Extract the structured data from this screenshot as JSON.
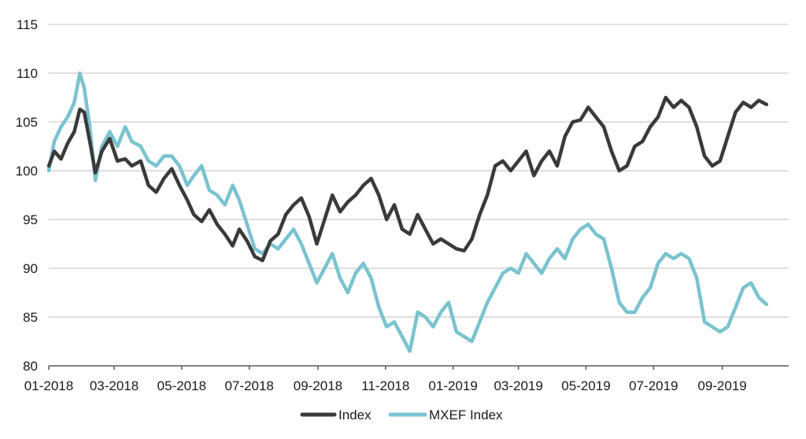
{
  "chart_data": {
    "type": "line",
    "title": "",
    "xlabel": "",
    "ylabel": "",
    "ylim": [
      80,
      115
    ],
    "xlim": [
      "2018-01-01",
      "2019-10-31"
    ],
    "y_ticks": [
      80,
      85,
      90,
      95,
      100,
      105,
      110,
      115
    ],
    "x_ticks": [
      {
        "label": "01-2018",
        "date": "2018-01-01"
      },
      {
        "label": "03-2018",
        "date": "2018-03-01"
      },
      {
        "label": "05-2018",
        "date": "2018-05-01"
      },
      {
        "label": "07-2018",
        "date": "2018-07-01"
      },
      {
        "label": "09-2018",
        "date": "2018-09-01"
      },
      {
        "label": "11-2018",
        "date": "2018-11-01"
      },
      {
        "label": "01-2019",
        "date": "2019-01-01"
      },
      {
        "label": "03-2019",
        "date": "2019-03-01"
      },
      {
        "label": "05-2019",
        "date": "2019-05-01"
      },
      {
        "label": "07-2019",
        "date": "2019-07-01"
      },
      {
        "label": "09-2019",
        "date": "2019-09-01"
      }
    ],
    "grid": "horizontal",
    "legend_position": "bottom-center",
    "series": [
      {
        "name": "Index",
        "color": "#3a3a3a",
        "points": [
          [
            "2018-01-01",
            100.5
          ],
          [
            "2018-01-06",
            102.0
          ],
          [
            "2018-01-12",
            101.2
          ],
          [
            "2018-01-18",
            102.8
          ],
          [
            "2018-01-24",
            104.0
          ],
          [
            "2018-01-29",
            106.3
          ],
          [
            "2018-02-02",
            106.0
          ],
          [
            "2018-02-07",
            103.0
          ],
          [
            "2018-02-12",
            99.8
          ],
          [
            "2018-02-18",
            102.0
          ],
          [
            "2018-02-25",
            103.3
          ],
          [
            "2018-03-04",
            101.0
          ],
          [
            "2018-03-11",
            101.2
          ],
          [
            "2018-03-17",
            100.5
          ],
          [
            "2018-03-25",
            101.0
          ],
          [
            "2018-04-01",
            98.5
          ],
          [
            "2018-04-08",
            97.8
          ],
          [
            "2018-04-15",
            99.2
          ],
          [
            "2018-04-22",
            100.2
          ],
          [
            "2018-04-29",
            98.5
          ],
          [
            "2018-05-06",
            97.0
          ],
          [
            "2018-05-12",
            95.5
          ],
          [
            "2018-05-19",
            94.8
          ],
          [
            "2018-05-26",
            96.0
          ],
          [
            "2018-06-02",
            94.5
          ],
          [
            "2018-06-09",
            93.5
          ],
          [
            "2018-06-16",
            92.3
          ],
          [
            "2018-06-22",
            94.0
          ],
          [
            "2018-06-29",
            92.8
          ],
          [
            "2018-07-06",
            91.2
          ],
          [
            "2018-07-13",
            90.8
          ],
          [
            "2018-07-20",
            92.8
          ],
          [
            "2018-07-27",
            93.5
          ],
          [
            "2018-08-03",
            95.5
          ],
          [
            "2018-08-10",
            96.5
          ],
          [
            "2018-08-17",
            97.2
          ],
          [
            "2018-08-24",
            95.3
          ],
          [
            "2018-08-31",
            92.5
          ],
          [
            "2018-09-07",
            95.0
          ],
          [
            "2018-09-14",
            97.5
          ],
          [
            "2018-09-21",
            95.8
          ],
          [
            "2018-09-28",
            96.8
          ],
          [
            "2018-10-05",
            97.5
          ],
          [
            "2018-10-12",
            98.5
          ],
          [
            "2018-10-19",
            99.2
          ],
          [
            "2018-10-26",
            97.5
          ],
          [
            "2018-11-02",
            95.0
          ],
          [
            "2018-11-09",
            96.5
          ],
          [
            "2018-11-16",
            94.0
          ],
          [
            "2018-11-23",
            93.5
          ],
          [
            "2018-11-30",
            95.5
          ],
          [
            "2018-12-07",
            94.0
          ],
          [
            "2018-12-14",
            92.5
          ],
          [
            "2018-12-21",
            93.0
          ],
          [
            "2018-12-28",
            92.5
          ],
          [
            "2019-01-04",
            92.0
          ],
          [
            "2019-01-11",
            91.8
          ],
          [
            "2019-01-18",
            93.0
          ],
          [
            "2019-01-25",
            95.5
          ],
          [
            "2019-02-01",
            97.5
          ],
          [
            "2019-02-08",
            100.5
          ],
          [
            "2019-02-15",
            101.0
          ],
          [
            "2019-02-22",
            100.0
          ],
          [
            "2019-03-01",
            101.0
          ],
          [
            "2019-03-08",
            102.0
          ],
          [
            "2019-03-15",
            99.5
          ],
          [
            "2019-03-22",
            101.0
          ],
          [
            "2019-03-29",
            102.0
          ],
          [
            "2019-04-05",
            100.5
          ],
          [
            "2019-04-12",
            103.5
          ],
          [
            "2019-04-19",
            105.0
          ],
          [
            "2019-04-26",
            105.2
          ],
          [
            "2019-05-03",
            106.5
          ],
          [
            "2019-05-10",
            105.5
          ],
          [
            "2019-05-17",
            104.5
          ],
          [
            "2019-05-24",
            102.0
          ],
          [
            "2019-05-31",
            100.0
          ],
          [
            "2019-06-07",
            100.5
          ],
          [
            "2019-06-14",
            102.5
          ],
          [
            "2019-06-21",
            103.0
          ],
          [
            "2019-06-28",
            104.5
          ],
          [
            "2019-07-05",
            105.5
          ],
          [
            "2019-07-12",
            107.5
          ],
          [
            "2019-07-19",
            106.5
          ],
          [
            "2019-07-26",
            107.2
          ],
          [
            "2019-08-02",
            106.5
          ],
          [
            "2019-08-09",
            104.5
          ],
          [
            "2019-08-16",
            101.5
          ],
          [
            "2019-08-23",
            100.5
          ],
          [
            "2019-08-30",
            101.0
          ],
          [
            "2019-09-06",
            103.5
          ],
          [
            "2019-09-13",
            106.0
          ],
          [
            "2019-09-20",
            107.0
          ],
          [
            "2019-09-27",
            106.5
          ],
          [
            "2019-10-04",
            107.2
          ],
          [
            "2019-10-11",
            106.8
          ]
        ]
      },
      {
        "name": "MXEF Index",
        "color": "#7ac3d0",
        "points": [
          [
            "2018-01-01",
            100.0
          ],
          [
            "2018-01-06",
            103.0
          ],
          [
            "2018-01-12",
            104.5
          ],
          [
            "2018-01-18",
            105.5
          ],
          [
            "2018-01-24",
            107.0
          ],
          [
            "2018-01-29",
            110.0
          ],
          [
            "2018-02-02",
            108.5
          ],
          [
            "2018-02-07",
            104.5
          ],
          [
            "2018-02-12",
            99.0
          ],
          [
            "2018-02-18",
            102.5
          ],
          [
            "2018-02-25",
            104.0
          ],
          [
            "2018-03-04",
            102.5
          ],
          [
            "2018-03-11",
            104.5
          ],
          [
            "2018-03-17",
            103.0
          ],
          [
            "2018-03-25",
            102.5
          ],
          [
            "2018-04-01",
            101.0
          ],
          [
            "2018-04-08",
            100.5
          ],
          [
            "2018-04-15",
            101.5
          ],
          [
            "2018-04-22",
            101.5
          ],
          [
            "2018-04-29",
            100.5
          ],
          [
            "2018-05-06",
            98.5
          ],
          [
            "2018-05-12",
            99.5
          ],
          [
            "2018-05-19",
            100.5
          ],
          [
            "2018-05-26",
            98.0
          ],
          [
            "2018-06-02",
            97.5
          ],
          [
            "2018-06-09",
            96.5
          ],
          [
            "2018-06-16",
            98.5
          ],
          [
            "2018-06-22",
            97.0
          ],
          [
            "2018-06-29",
            94.5
          ],
          [
            "2018-07-06",
            92.0
          ],
          [
            "2018-07-13",
            91.5
          ],
          [
            "2018-07-20",
            92.5
          ],
          [
            "2018-07-27",
            92.0
          ],
          [
            "2018-08-03",
            93.0
          ],
          [
            "2018-08-10",
            94.0
          ],
          [
            "2018-08-17",
            92.5
          ],
          [
            "2018-08-24",
            90.5
          ],
          [
            "2018-08-31",
            88.5
          ],
          [
            "2018-09-07",
            90.0
          ],
          [
            "2018-09-14",
            91.5
          ],
          [
            "2018-09-21",
            89.0
          ],
          [
            "2018-09-28",
            87.5
          ],
          [
            "2018-10-05",
            89.5
          ],
          [
            "2018-10-12",
            90.5
          ],
          [
            "2018-10-19",
            89.0
          ],
          [
            "2018-10-26",
            86.0
          ],
          [
            "2018-11-02",
            84.0
          ],
          [
            "2018-11-09",
            84.5
          ],
          [
            "2018-11-16",
            83.0
          ],
          [
            "2018-11-23",
            81.5
          ],
          [
            "2018-11-30",
            85.5
          ],
          [
            "2018-12-07",
            85.0
          ],
          [
            "2018-12-14",
            84.0
          ],
          [
            "2018-12-21",
            85.5
          ],
          [
            "2018-12-28",
            86.5
          ],
          [
            "2019-01-04",
            83.5
          ],
          [
            "2019-01-11",
            83.0
          ],
          [
            "2019-01-18",
            82.5
          ],
          [
            "2019-01-25",
            84.5
          ],
          [
            "2019-02-01",
            86.5
          ],
          [
            "2019-02-08",
            88.0
          ],
          [
            "2019-02-15",
            89.5
          ],
          [
            "2019-02-22",
            90.0
          ],
          [
            "2019-03-01",
            89.5
          ],
          [
            "2019-03-08",
            91.5
          ],
          [
            "2019-03-15",
            90.5
          ],
          [
            "2019-03-22",
            89.5
          ],
          [
            "2019-03-29",
            91.0
          ],
          [
            "2019-04-05",
            92.0
          ],
          [
            "2019-04-12",
            91.0
          ],
          [
            "2019-04-19",
            93.0
          ],
          [
            "2019-04-26",
            94.0
          ],
          [
            "2019-05-03",
            94.5
          ],
          [
            "2019-05-10",
            93.5
          ],
          [
            "2019-05-17",
            93.0
          ],
          [
            "2019-05-24",
            90.0
          ],
          [
            "2019-05-31",
            86.5
          ],
          [
            "2019-06-07",
            85.5
          ],
          [
            "2019-06-14",
            85.5
          ],
          [
            "2019-06-21",
            87.0
          ],
          [
            "2019-06-28",
            88.0
          ],
          [
            "2019-07-05",
            90.5
          ],
          [
            "2019-07-12",
            91.5
          ],
          [
            "2019-07-19",
            91.0
          ],
          [
            "2019-07-26",
            91.5
          ],
          [
            "2019-08-02",
            91.0
          ],
          [
            "2019-08-09",
            89.0
          ],
          [
            "2019-08-16",
            84.5
          ],
          [
            "2019-08-23",
            84.0
          ],
          [
            "2019-08-30",
            83.5
          ],
          [
            "2019-09-06",
            84.0
          ],
          [
            "2019-09-13",
            86.0
          ],
          [
            "2019-09-20",
            88.0
          ],
          [
            "2019-09-27",
            88.5
          ],
          [
            "2019-10-04",
            87.0
          ],
          [
            "2019-10-11",
            86.3
          ]
        ]
      }
    ]
  }
}
